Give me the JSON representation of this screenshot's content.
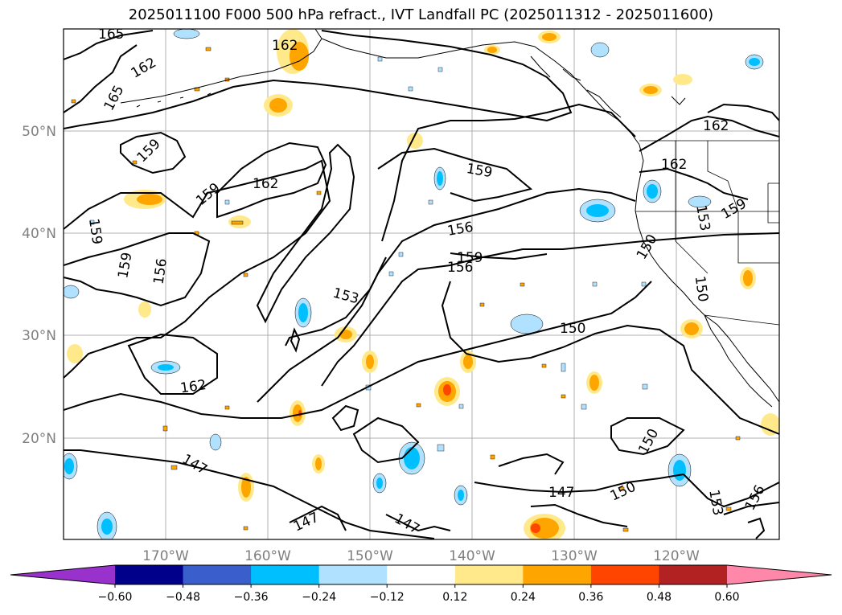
{
  "title": "2025011100 F000 500 hPa refract., IVT Landfall PC (2025011312 - 2025011600)",
  "map": {
    "lat_labels": [
      "50°N",
      "40°N",
      "30°N",
      "20°N"
    ],
    "lon_labels": [
      "170°W",
      "160°W",
      "150°W",
      "140°W",
      "130°W",
      "120°W"
    ],
    "contour_labels": [
      {
        "text": "165"
      },
      {
        "text": "162"
      },
      {
        "text": "165"
      },
      {
        "text": "162"
      },
      {
        "text": "159"
      },
      {
        "text": "162"
      },
      {
        "text": "159"
      },
      {
        "text": "159"
      },
      {
        "text": "156"
      },
      {
        "text": "159"
      },
      {
        "text": "153"
      },
      {
        "text": "156"
      },
      {
        "text": "159"
      },
      {
        "text": "156"
      },
      {
        "text": "162"
      },
      {
        "text": "162"
      },
      {
        "text": "159"
      },
      {
        "text": "153"
      },
      {
        "text": "150"
      },
      {
        "text": "150"
      },
      {
        "text": "150"
      },
      {
        "text": "150"
      },
      {
        "text": "150"
      },
      {
        "text": "147"
      },
      {
        "text": "147"
      },
      {
        "text": "147"
      },
      {
        "text": "147"
      },
      {
        "text": "153"
      },
      {
        "text": "156"
      },
      {
        "text": "159"
      },
      {
        "text": "162"
      }
    ]
  },
  "colorbar": {
    "colors": [
      "#9932cc",
      "#00008b",
      "#3a5fcd",
      "#00bfff",
      "#b0e2ff",
      "#ffffff",
      "#ffe98a",
      "#ffa500",
      "#ff4500",
      "#b22222",
      "#ff88aa"
    ],
    "tick_labels": [
      "−0.60",
      "−0.48",
      "−0.36",
      "−0.24",
      "−0.12",
      "0.12",
      "0.24",
      "0.36",
      "0.48",
      "0.60"
    ]
  },
  "colors": {
    "contour": "#000000",
    "gridline": "#b0b0b0",
    "coast": "#000000"
  }
}
